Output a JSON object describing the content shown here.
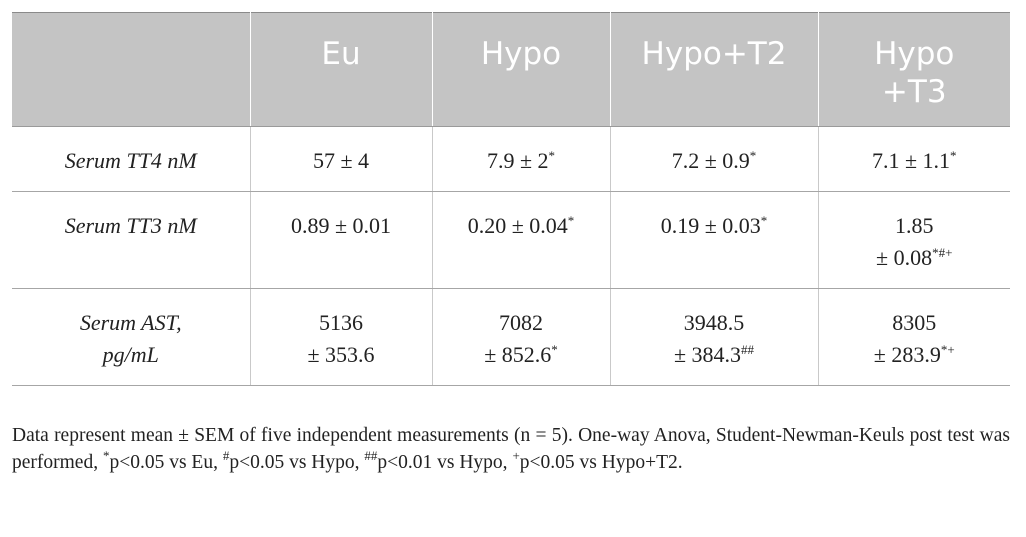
{
  "table": {
    "header": [
      "Eu",
      "Hypo",
      "Hypo+T2",
      "Hypo\n+T3"
    ],
    "rows": [
      {
        "label": "Serum TT4 nM",
        "cells": [
          {
            "text": "57 ± 4"
          },
          {
            "text": "7.9 ± 2",
            "sup": "*"
          },
          {
            "text": "7.2 ± 0.9",
            "sup": "*"
          },
          {
            "text": "7.1 ± 1.1",
            "sup": "*"
          }
        ]
      },
      {
        "label": "Serum TT3 nM",
        "cells": [
          {
            "text": "0.89 ± 0.01"
          },
          {
            "text": "0.20 ± 0.04",
            "sup": "*"
          },
          {
            "text": "0.19 ± 0.03",
            "sup": "*"
          },
          {
            "text": "1.85\n± 0.08",
            "sup": "*#+"
          }
        ]
      },
      {
        "label": "Serum AST,\npg/mL",
        "cells": [
          {
            "text": "5136\n± 353.6"
          },
          {
            "text": "7082\n± 852.6",
            "sup": "*"
          },
          {
            "text": "3948.5\n± 384.3",
            "sup": "##"
          },
          {
            "text": "8305\n± 283.9",
            "sup": "*+"
          }
        ]
      }
    ]
  },
  "footnote": [
    {
      "text": "Data represent mean ± SEM of five independent measurements (n = 5). One-way Anova, Student-Newman-Keuls post test was performed, "
    },
    {
      "sup": "*"
    },
    {
      "text": "p<0.05 vs Eu, "
    },
    {
      "sup": "#"
    },
    {
      "text": "p<0.05 vs Hypo, "
    },
    {
      "sup": "##"
    },
    {
      "text": "p<0.01 vs Hypo, "
    },
    {
      "sup": "+"
    },
    {
      "text": "p<0.05 vs Hypo+T2."
    }
  ]
}
